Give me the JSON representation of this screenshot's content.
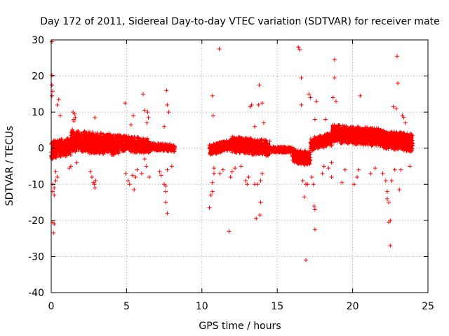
{
  "chart_data": {
    "type": "scatter",
    "title": "Day 172 of 2011, Sidereal Day-to-day VTEC variation (SDTVAR) for receiver mate",
    "xlabel": "GPS time / hours",
    "ylabel": "SDTVAR / TECUs",
    "xlim": [
      0,
      25
    ],
    "ylim": [
      -40,
      30
    ],
    "xticks": [
      0,
      5,
      10,
      15,
      20,
      25
    ],
    "yticks": [
      -40,
      -30,
      -20,
      -10,
      0,
      10,
      20,
      30
    ],
    "grid": true,
    "marker": "+",
    "series_color": "#ff0000",
    "series": [
      {
        "name": "SDTVAR",
        "points": [
          [
            0.05,
            29.5
          ],
          [
            0.05,
            20.2
          ],
          [
            0.05,
            17.5
          ],
          [
            0.1,
            15.8
          ],
          [
            0.05,
            14.5
          ],
          [
            0.1,
            -20.5
          ],
          [
            0.2,
            -21
          ],
          [
            0.15,
            -23.5
          ],
          [
            0.1,
            -12
          ],
          [
            0.2,
            -11
          ],
          [
            0.1,
            -10
          ],
          [
            0.3,
            -9
          ],
          [
            0.2,
            -13
          ],
          [
            0.4,
            -8
          ],
          [
            0.3,
            -6.5
          ],
          [
            0.5,
            13.5
          ],
          [
            0.4,
            12
          ],
          [
            0.6,
            9
          ],
          [
            1.4,
            5.2
          ],
          [
            1.5,
            7.5
          ],
          [
            1.55,
            9.5
          ],
          [
            1.6,
            8.5
          ],
          [
            1.7,
            -4
          ],
          [
            1.8,
            4.5
          ],
          [
            1.2,
            -5.5
          ],
          [
            1.3,
            -5
          ],
          [
            1.5,
            8
          ],
          [
            1.45,
            10
          ],
          [
            2.8,
            -9.5
          ],
          [
            2.9,
            -11
          ],
          [
            2.85,
            -10
          ],
          [
            2.7,
            -8
          ],
          [
            2.9,
            8.5
          ],
          [
            2.95,
            -9
          ],
          [
            2.6,
            -6.5
          ],
          [
            4.9,
            12.5
          ],
          [
            4.95,
            -7
          ],
          [
            5.1,
            -9
          ],
          [
            5.2,
            -10
          ],
          [
            5.5,
            -11.5
          ],
          [
            5.6,
            -8
          ],
          [
            5.4,
            -7.5
          ],
          [
            5.3,
            6.5
          ],
          [
            5.7,
            -6
          ],
          [
            5.45,
            9
          ],
          [
            6.0,
            -7
          ],
          [
            6.1,
            15
          ],
          [
            6.2,
            10.5
          ],
          [
            6.3,
            -5
          ],
          [
            6.4,
            10
          ],
          [
            6.5,
            -8
          ],
          [
            6.45,
            8.5
          ],
          [
            6.2,
            -3
          ],
          [
            6.35,
            7
          ],
          [
            7.2,
            -6.5
          ],
          [
            7.3,
            -7.5
          ],
          [
            7.5,
            -10
          ],
          [
            7.6,
            -12
          ],
          [
            7.6,
            -15
          ],
          [
            7.7,
            -18
          ],
          [
            7.65,
            16
          ],
          [
            7.7,
            12
          ],
          [
            7.8,
            10
          ],
          [
            7.6,
            -10.5
          ],
          [
            7.7,
            -6
          ],
          [
            7.5,
            6
          ],
          [
            8.0,
            -5
          ],
          [
            10.5,
            -16.5
          ],
          [
            10.6,
            -13
          ],
          [
            10.7,
            -12
          ],
          [
            10.7,
            -9.5
          ],
          [
            10.8,
            -7
          ],
          [
            10.7,
            14.5
          ],
          [
            10.75,
            9
          ],
          [
            10.8,
            -5.5
          ],
          [
            11.15,
            27.5
          ],
          [
            11.2,
            -7
          ],
          [
            11.4,
            -6
          ],
          [
            11.8,
            -23
          ],
          [
            11.9,
            -8
          ],
          [
            12.0,
            -6.5
          ],
          [
            12.2,
            -5.5
          ],
          [
            12.5,
            3
          ],
          [
            12.6,
            -5
          ],
          [
            12.9,
            -9
          ],
          [
            13.0,
            -10
          ],
          [
            13.1,
            -8
          ],
          [
            13.2,
            11.5
          ],
          [
            13.3,
            12
          ],
          [
            13.5,
            -10
          ],
          [
            13.6,
            -19.5
          ],
          [
            13.7,
            -10
          ],
          [
            13.75,
            12
          ],
          [
            13.8,
            17.5
          ],
          [
            13.85,
            -18.5
          ],
          [
            13.9,
            -15
          ],
          [
            13.9,
            -9
          ],
          [
            14.0,
            12.5
          ],
          [
            14.1,
            7
          ],
          [
            14.0,
            -7
          ],
          [
            13.5,
            6
          ],
          [
            16.4,
            28
          ],
          [
            16.5,
            27.3
          ],
          [
            16.6,
            19.5
          ],
          [
            16.7,
            -9
          ],
          [
            16.8,
            -13.5
          ],
          [
            16.9,
            -31
          ],
          [
            16.9,
            -10
          ],
          [
            17.0,
            -10
          ],
          [
            17.1,
            15
          ],
          [
            17.2,
            14
          ],
          [
            17.3,
            -8
          ],
          [
            17.4,
            -10
          ],
          [
            17.45,
            -16
          ],
          [
            17.5,
            -17
          ],
          [
            17.5,
            -22.5
          ],
          [
            17.6,
            13
          ],
          [
            17.5,
            8
          ],
          [
            16.6,
            12
          ],
          [
            18.0,
            -7
          ],
          [
            18.1,
            -5
          ],
          [
            18.2,
            8
          ],
          [
            18.4,
            -5.5
          ],
          [
            18.6,
            -8
          ],
          [
            18.7,
            14
          ],
          [
            18.8,
            19.5
          ],
          [
            18.8,
            24.5
          ],
          [
            18.9,
            13
          ],
          [
            18.6,
            -4
          ],
          [
            19.3,
            -9.5
          ],
          [
            19.5,
            -6
          ],
          [
            20.1,
            -10
          ],
          [
            20.4,
            -6
          ],
          [
            20.5,
            14.5
          ],
          [
            20.3,
            -8
          ],
          [
            21.2,
            -7
          ],
          [
            21.5,
            -5.5
          ],
          [
            22.0,
            -7
          ],
          [
            22.2,
            -9
          ],
          [
            22.3,
            -12
          ],
          [
            22.3,
            -14
          ],
          [
            22.4,
            -15
          ],
          [
            22.4,
            -20.5
          ],
          [
            22.5,
            -20
          ],
          [
            22.5,
            -27
          ],
          [
            22.6,
            -9
          ],
          [
            22.7,
            11.5
          ],
          [
            22.8,
            -6
          ],
          [
            22.95,
            25.5
          ],
          [
            23.0,
            18
          ],
          [
            23.1,
            -11.5
          ],
          [
            23.2,
            -6
          ],
          [
            23.3,
            9
          ],
          [
            23.4,
            8.5
          ],
          [
            23.5,
            7
          ],
          [
            22.9,
            11
          ],
          [
            23.8,
            -5
          ]
        ]
      }
    ],
    "dense_bands": [
      {
        "x_start": 0.0,
        "x_end": 1.3,
        "center_start": -0.5,
        "center_end": 0.5,
        "half_width": 2.5
      },
      {
        "x_start": 1.3,
        "x_end": 4.5,
        "center_start": 2.0,
        "center_end": 1.0,
        "half_width": 3.0
      },
      {
        "x_start": 4.5,
        "x_end": 6.5,
        "center_start": 1.5,
        "center_end": 0.5,
        "half_width": 2.2
      },
      {
        "x_start": 6.5,
        "x_end": 8.2,
        "center_start": 0.5,
        "center_end": 0.0,
        "half_width": 1.0
      },
      {
        "x_start": 10.5,
        "x_end": 12.0,
        "center_start": -0.5,
        "center_end": 1.0,
        "half_width": 1.5
      },
      {
        "x_start": 12.0,
        "x_end": 14.5,
        "center_start": 1.0,
        "center_end": 0.0,
        "half_width": 2.2
      },
      {
        "x_start": 14.5,
        "x_end": 16.0,
        "center_start": -0.3,
        "center_end": -0.5,
        "half_width": 0.8
      },
      {
        "x_start": 16.0,
        "x_end": 17.2,
        "center_start": -2.0,
        "center_end": -3.0,
        "half_width": 2.0
      },
      {
        "x_start": 17.2,
        "x_end": 18.6,
        "center_start": 1.0,
        "center_end": 2.5,
        "half_width": 1.8
      },
      {
        "x_start": 18.6,
        "x_end": 22.0,
        "center_start": 4.0,
        "center_end": 3.0,
        "half_width": 2.5
      },
      {
        "x_start": 22.0,
        "x_end": 24.0,
        "center_start": 2.5,
        "center_end": 1.5,
        "half_width": 2.5
      }
    ]
  }
}
